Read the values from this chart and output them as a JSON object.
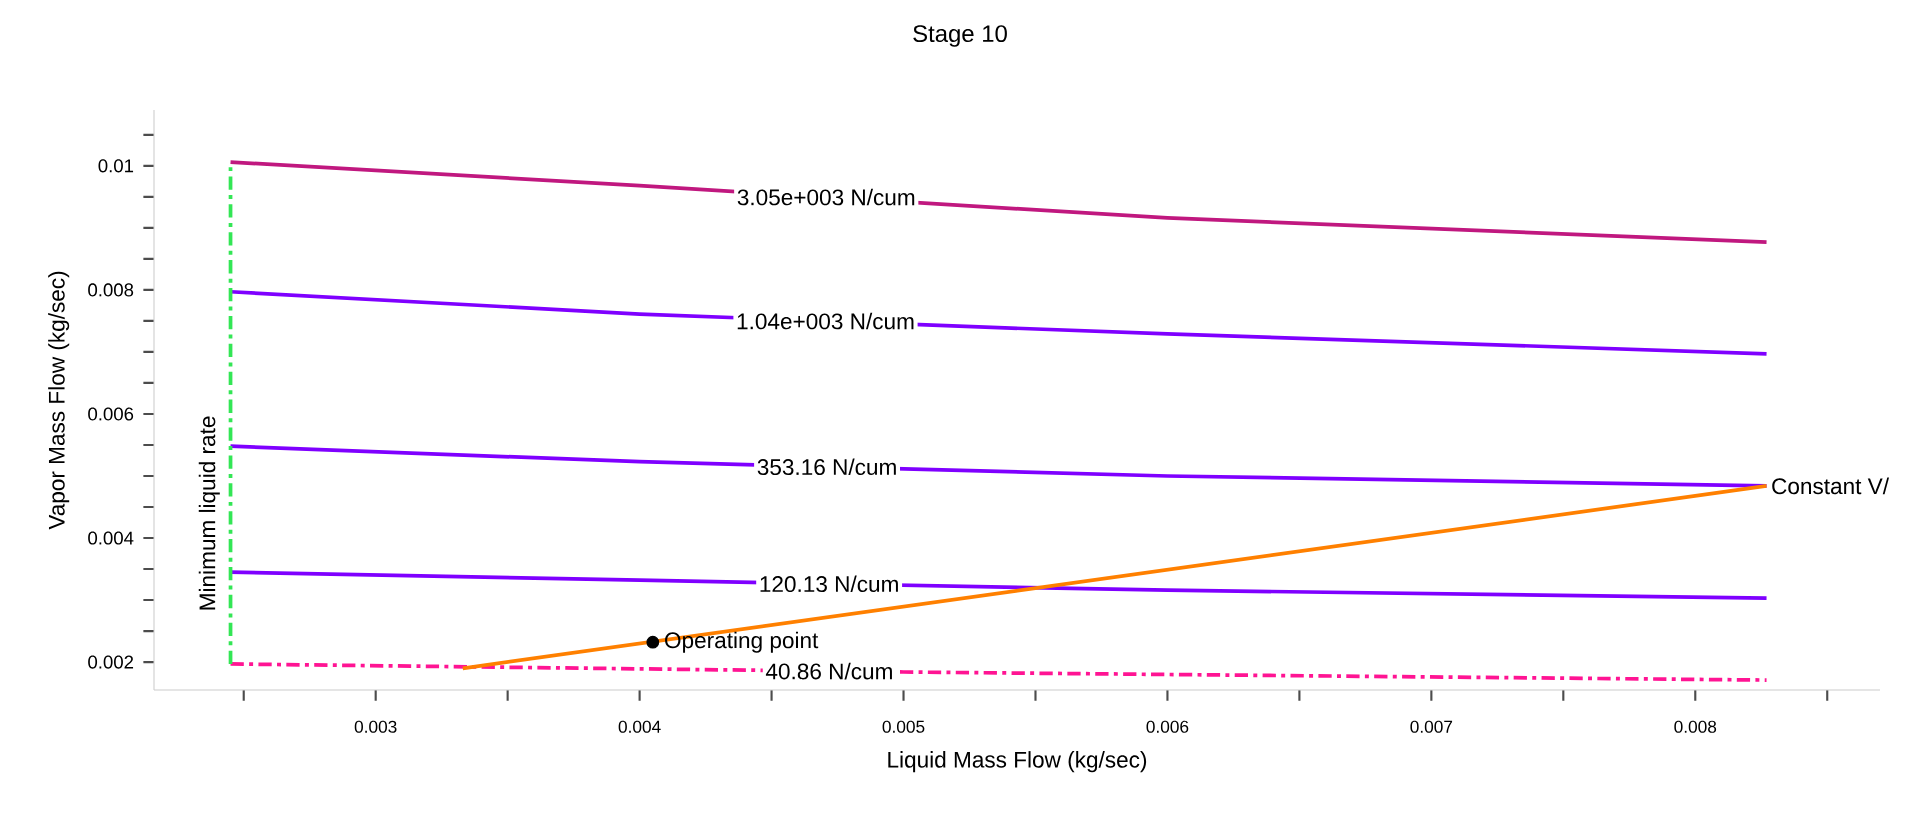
{
  "chart_data": {
    "type": "line",
    "title": "Stage 10",
    "xlabel": "Liquid Mass Flow (kg/sec)",
    "ylabel": "Vapor Mass Flow (kg/sec)",
    "xlim": [
      0.00216,
      0.0087
    ],
    "ylim": [
      0.00155,
      0.0109
    ],
    "xticks": [
      {
        "value": 0.0025,
        "label": null
      },
      0.003,
      {
        "value": 0.0035,
        "label": null
      },
      0.004,
      {
        "value": 0.0045,
        "label": null
      },
      0.005,
      {
        "value": 0.0055,
        "label": null
      },
      0.006,
      {
        "value": 0.0065,
        "label": null
      },
      0.007,
      {
        "value": 0.0075,
        "label": null
      },
      0.008,
      {
        "value": 0.0085,
        "label": null
      }
    ],
    "yticks": [
      0.002,
      {
        "value": 0.0025,
        "label": null
      },
      {
        "value": 0.003,
        "label": null
      },
      {
        "value": 0.0035,
        "label": null
      },
      0.004,
      {
        "value": 0.0045,
        "label": null
      },
      {
        "value": 0.005,
        "label": null
      },
      {
        "value": 0.0055,
        "label": null
      },
      0.006,
      {
        "value": 0.0065,
        "label": null
      },
      {
        "value": 0.007,
        "label": null
      },
      {
        "value": 0.0075,
        "label": null
      },
      0.008,
      {
        "value": 0.0085,
        "label": null
      },
      {
        "value": 0.009,
        "label": null
      },
      {
        "value": 0.0095,
        "label": null
      },
      0.01,
      {
        "value": 0.0105,
        "label": null
      }
    ],
    "grid": false,
    "series": [
      {
        "name": "3.05e+003 N/cum",
        "color": "#c0187f",
        "line_style": "solid",
        "x": [
          0.00245,
          0.004,
          0.006,
          0.00827
        ],
        "values": [
          0.01006,
          0.00968,
          0.00916,
          0.00877
        ]
      },
      {
        "name": "1.04e+003 N/cum",
        "color": "#7f00ff",
        "line_style": "solid",
        "x": [
          0.00245,
          0.004,
          0.006,
          0.00827
        ],
        "values": [
          0.00797,
          0.00761,
          0.00729,
          0.00697
        ]
      },
      {
        "name": "353.16 N/cum",
        "color": "#7f00ff",
        "line_style": "solid",
        "x": [
          0.00245,
          0.004,
          0.006,
          0.00827
        ],
        "values": [
          0.00548,
          0.00523,
          0.005,
          0.00484
        ]
      },
      {
        "name": "120.13 N/cum",
        "color": "#7f00ff",
        "line_style": "solid",
        "x": [
          0.00245,
          0.004,
          0.006,
          0.00827
        ],
        "values": [
          0.00345,
          0.00332,
          0.00316,
          0.00303
        ]
      },
      {
        "name": "40.86 N/cum",
        "color": "#ff1493",
        "line_style": "dashdot",
        "x": [
          0.00245,
          0.005,
          0.00827
        ],
        "values": [
          0.00197,
          0.00184,
          0.00171
        ]
      },
      {
        "name": "Minimum liquid rate",
        "color": "#33e655",
        "line_style": "dashdot",
        "x": [
          0.00245,
          0.00245
        ],
        "values": [
          0.00197,
          0.01006
        ]
      },
      {
        "name": "Constant V/",
        "color": "#ff8000",
        "line_style": "solid",
        "x": [
          0.00333,
          0.00827
        ],
        "values": [
          0.0019,
          0.00484
        ]
      },
      {
        "name": "Operating point",
        "type": "scatter",
        "marker": "circle",
        "color": "#000000",
        "x": [
          0.00405
        ],
        "values": [
          0.00232
        ]
      }
    ]
  }
}
